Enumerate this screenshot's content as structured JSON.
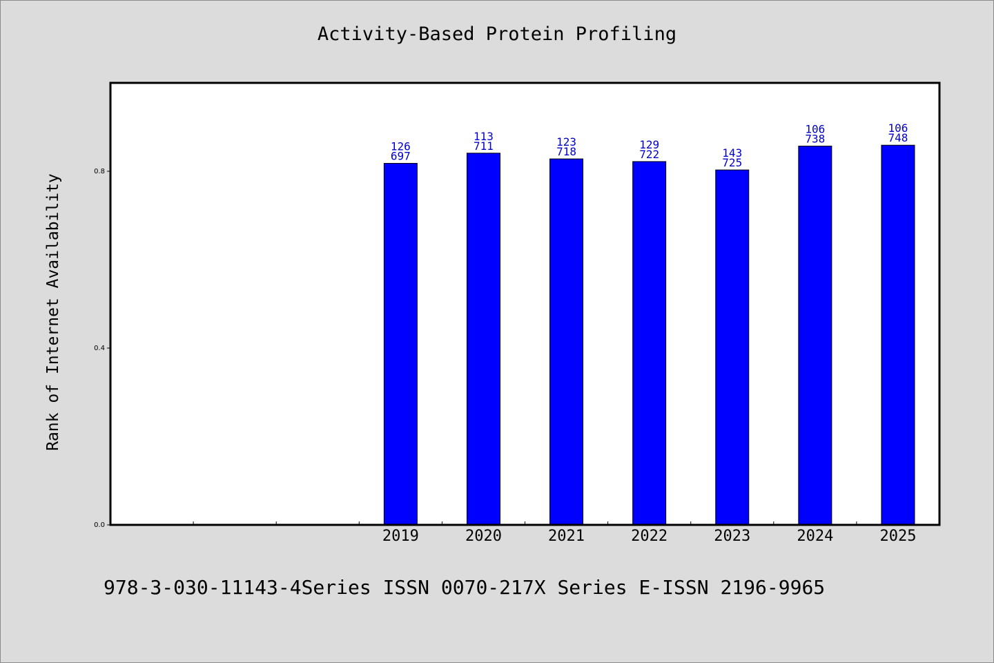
{
  "chart_data": {
    "type": "bar",
    "title": "Activity-Based Protein Profiling",
    "ylabel": "Rank of Internet Availability",
    "xlabel": "",
    "categories": [
      "",
      "",
      "",
      "2019",
      "2020",
      "2021",
      "2022",
      "2023",
      "2024",
      "2025"
    ],
    "values": [
      null,
      null,
      null,
      0.818,
      0.841,
      0.828,
      0.822,
      0.803,
      0.857,
      0.859
    ],
    "bar_labels": [
      null,
      null,
      null,
      [
        "126",
        "697"
      ],
      [
        "113",
        "711"
      ],
      [
        "123",
        "718"
      ],
      [
        "129",
        "722"
      ],
      [
        "143",
        "725"
      ],
      [
        "106",
        "738"
      ],
      [
        "106",
        "748"
      ]
    ],
    "yticks": [
      "0.0",
      "0.4",
      "0.8"
    ],
    "ylim": [
      0,
      1
    ],
    "grid": false,
    "bar_color": "#0000ff",
    "label_color": "#0000cc"
  },
  "footer": "978-3-030-11143-4Series ISSN 0070-217X Series E-ISSN 2196-9965"
}
